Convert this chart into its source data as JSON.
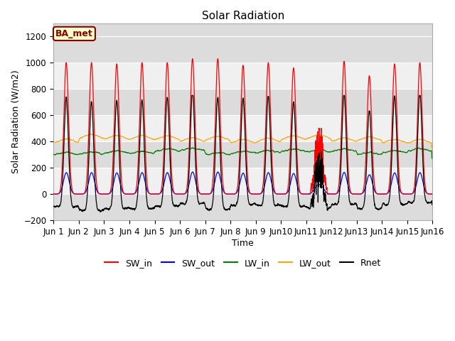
{
  "title": "Solar Radiation",
  "ylabel": "Solar Radiation (W/m2)",
  "xlabel": "Time",
  "ylim": [
    -200,
    1300
  ],
  "yticks": [
    -200,
    0,
    200,
    400,
    600,
    800,
    1000,
    1200
  ],
  "num_days": 15,
  "num_points": 2160,
  "colors": {
    "SW_in": "red",
    "SW_out": "blue",
    "LW_in": "green",
    "LW_out": "orange",
    "Rnet": "black"
  },
  "label_box": "BA_met",
  "label_box_bg": "#FFFFCC",
  "label_box_border": "#8B0000",
  "plot_bg_dark": "#DCDCDC",
  "plot_bg_light": "#F0F0F0",
  "legend_labels": [
    "SW_in",
    "SW_out",
    "LW_in",
    "LW_out",
    "Rnet"
  ],
  "title_fontsize": 11,
  "axis_fontsize": 9,
  "tick_fontsize": 8.5
}
